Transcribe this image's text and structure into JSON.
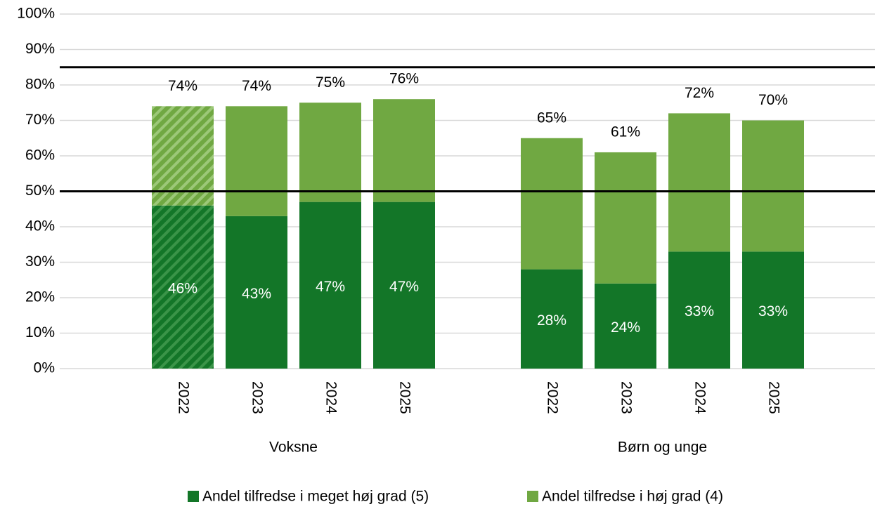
{
  "chart_data": {
    "type": "stacked_bar",
    "categories": [
      "2022",
      "2023",
      "2024",
      "2025",
      "2022",
      "2023",
      "2024",
      "2025"
    ],
    "groups": [
      "Voksne",
      "Børn og unge"
    ],
    "series": [
      {
        "name": "Andel tilfredse i meget høj grad (5)",
        "color": "#137628",
        "values": [
          46,
          43,
          47,
          47,
          28,
          24,
          33,
          33
        ],
        "value_labels": [
          "46%",
          "43%",
          "47%",
          "47%",
          "28%",
          "24%",
          "33%",
          "33%"
        ]
      },
      {
        "name": "Andel tilfredse i høj grad (4)",
        "color": "#70a842",
        "values": [
          28,
          31,
          28,
          29,
          37,
          37,
          39,
          37
        ]
      }
    ],
    "totals": [
      74,
      74,
      75,
      76,
      65,
      61,
      72,
      70
    ],
    "total_labels": [
      "74%",
      "74%",
      "75%",
      "76%",
      "65%",
      "61%",
      "72%",
      "70%"
    ],
    "hatched": [
      true,
      false,
      false,
      false,
      false,
      false,
      false,
      false
    ],
    "reference_lines": [
      85,
      50
    ],
    "ylim": [
      0,
      100
    ],
    "yticks": [
      {
        "value": 0,
        "label": "0%"
      },
      {
        "value": 10,
        "label": "10%"
      },
      {
        "value": 20,
        "label": "20%"
      },
      {
        "value": 30,
        "label": "30%"
      },
      {
        "value": 40,
        "label": "40%"
      },
      {
        "value": 50,
        "label": "50%"
      },
      {
        "value": 60,
        "label": "60%"
      },
      {
        "value": 70,
        "label": "70%"
      },
      {
        "value": 80,
        "label": "80%"
      },
      {
        "value": 90,
        "label": "90%"
      },
      {
        "value": 100,
        "label": "100%"
      }
    ],
    "grid": true,
    "legend": "bottom"
  }
}
